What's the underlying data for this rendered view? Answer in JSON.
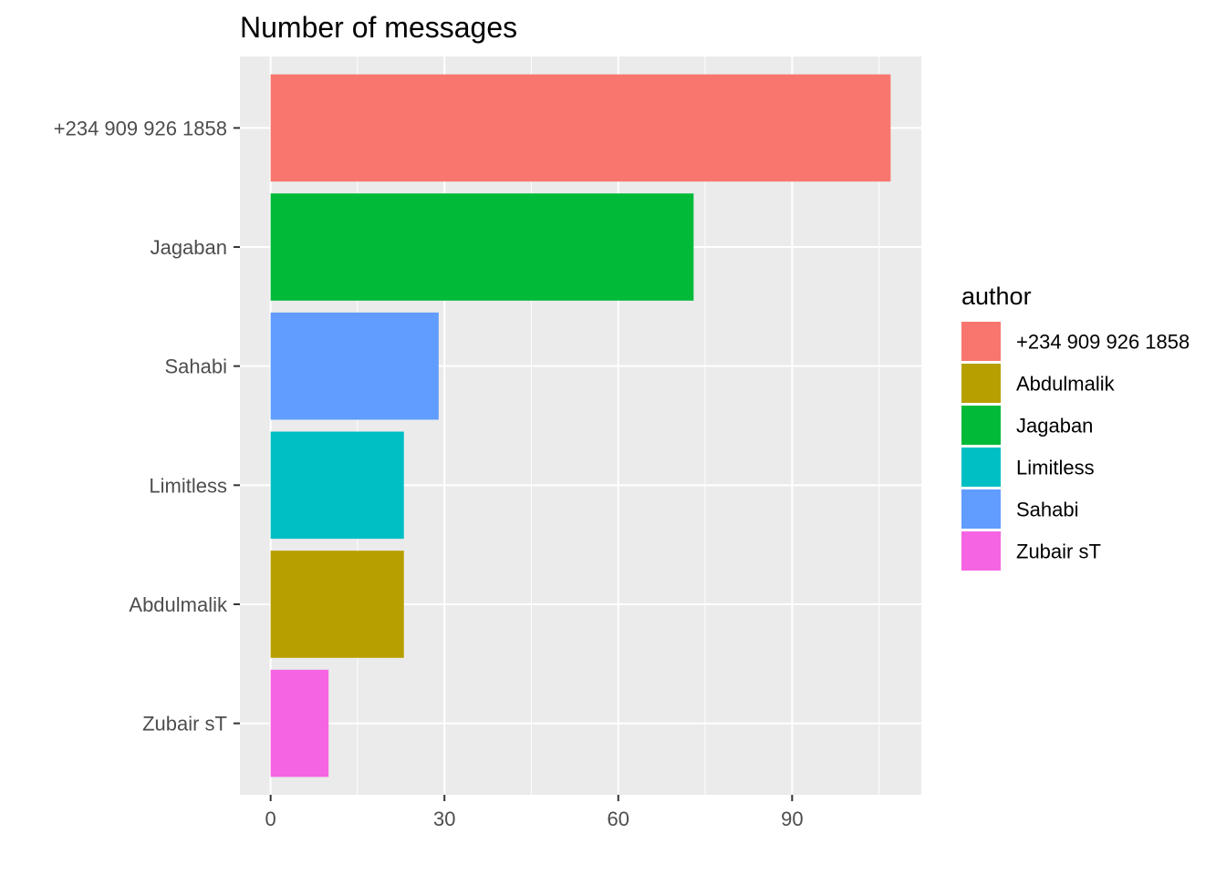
{
  "chart_data": {
    "type": "bar",
    "orientation": "horizontal",
    "title": "Number of messages",
    "xlabel": "",
    "ylabel": "",
    "categories": [
      "+234 909 926 1858",
      "Jagaban",
      "Sahabi",
      "Limitless",
      "Abdulmalik",
      "Zubair sT"
    ],
    "values": [
      107,
      73,
      29,
      23,
      23,
      10
    ],
    "bar_colors": [
      "#F8766D",
      "#00BA38",
      "#619CFF",
      "#00BFC4",
      "#B79F00",
      "#F564E3"
    ],
    "xlim": [
      -5.3,
      112.3
    ],
    "x_ticks": [
      0,
      30,
      60,
      90
    ],
    "x_tick_labels": [
      "0",
      "30",
      "60",
      "90"
    ],
    "grid": true,
    "panel_background": "#EBEBEB",
    "grid_color": "#FFFFFF",
    "legend": {
      "title": "author",
      "position": "right",
      "items": [
        {
          "label": "+234 909 926 1858",
          "color": "#F8766D"
        },
        {
          "label": "Abdulmalik",
          "color": "#B79F00"
        },
        {
          "label": "Jagaban",
          "color": "#00BA38"
        },
        {
          "label": "Limitless",
          "color": "#00BFC4"
        },
        {
          "label": "Sahabi",
          "color": "#619CFF"
        },
        {
          "label": "Zubair sT",
          "color": "#F564E3"
        }
      ]
    }
  }
}
